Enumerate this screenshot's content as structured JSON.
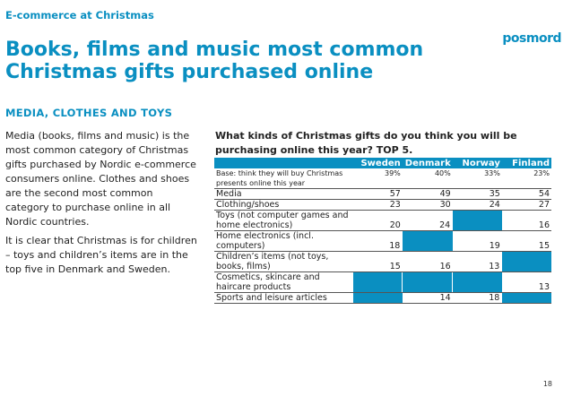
{
  "header": {
    "kicker": "E-commerce at Christmas",
    "logo": "posmord",
    "title": "Books, films and music most common Christmas gifts purchased online",
    "subtitle": "MEDIA, CLOTHES AND TOYS"
  },
  "body": {
    "p1": "Media (books, films and music) is the most common category of Christmas gifts purchased by Nordic e-commerce consumers online. Clothes and shoes are the second most common category to purchase online in all Nordic countries.",
    "p2": "It is clear that Christmas is for children – toys and children’s items are in the top five in Denmark and Sweden."
  },
  "table": {
    "question": "What kinds of Christmas gifts do you think you will be purchasing online this year? TOP 5.",
    "columns": [
      "Sweden",
      "Denmark",
      "Norway",
      "Finland"
    ],
    "base": {
      "label": "Base: think they will buy Christmas presents online this year",
      "values": [
        "39%",
        "40%",
        "33%",
        "23%"
      ]
    },
    "rows": [
      {
        "label": "Media",
        "values": [
          "57",
          "49",
          "35",
          "54"
        ]
      },
      {
        "label": "Clothing/shoes",
        "values": [
          "23",
          "30",
          "24",
          "27"
        ]
      },
      {
        "label": "Toys (not computer games and home electronics)",
        "values": [
          "20",
          "24",
          "",
          "16"
        ]
      },
      {
        "label": "Home electronics (incl. computers)",
        "values": [
          "18",
          "",
          "19",
          "15"
        ]
      },
      {
        "label": "Children’s items (not toys, books, films)",
        "values": [
          "15",
          "16",
          "13",
          ""
        ]
      },
      {
        "label": "Cosmetics, skincare and haircare products",
        "values": [
          "",
          "",
          "",
          "13"
        ]
      },
      {
        "label": "Sports and leisure articles",
        "values": [
          "",
          "14",
          "18",
          ""
        ]
      }
    ],
    "highlight_color": "#0a8fc1"
  },
  "footer": {
    "page": "18"
  }
}
